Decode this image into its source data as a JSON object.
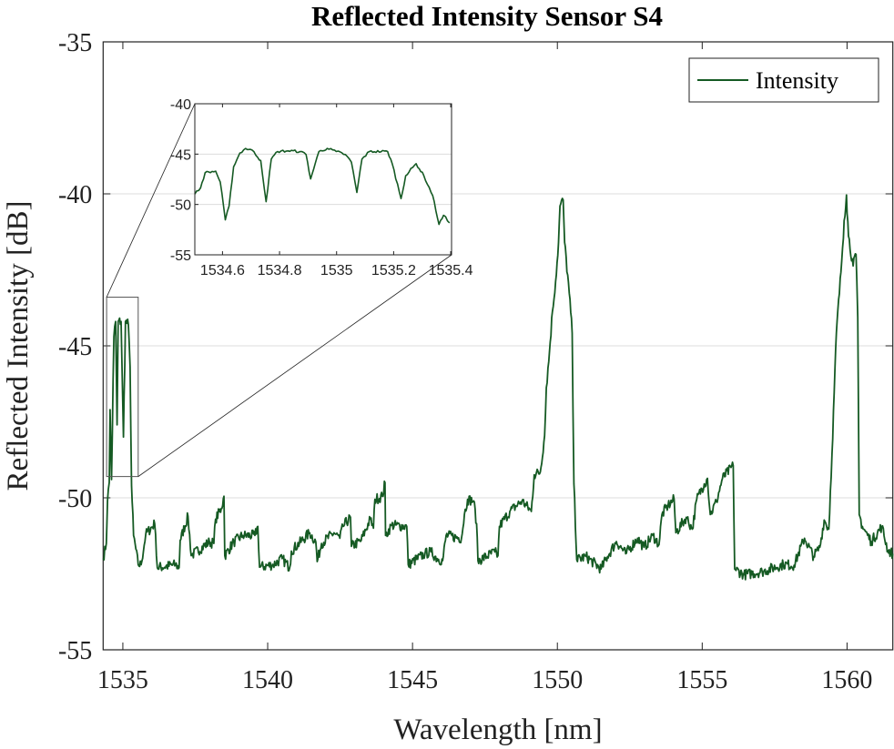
{
  "chart_data": {
    "type": "line",
    "title": "Reflected Intensity Sensor S4",
    "xlabel": "Wavelength [nm]",
    "ylabel": "Reflected Intensity [dB]",
    "xlim": [
      1534.32,
      1561.58
    ],
    "ylim": [
      -55,
      -35
    ],
    "xticks": [
      1535,
      1540,
      1545,
      1550,
      1555,
      1560
    ],
    "xtick_labels": [
      "1535",
      "1540",
      "1545",
      "1550",
      "1555",
      "1560"
    ],
    "yticks": [
      -35,
      -40,
      -45,
      -50,
      -55
    ],
    "ytick_labels": [
      "-35",
      "-40",
      "-45",
      "-50",
      "-55"
    ],
    "grid": "horizontal",
    "legend": {
      "placement": "top-right",
      "entries": [
        "Intensity"
      ]
    },
    "line_color": "#155a23",
    "series": [
      {
        "name": "Intensity",
        "x": [
          1534.32,
          1534.43,
          1534.47,
          1534.53,
          1534.56,
          1534.61,
          1534.69,
          1534.75,
          1534.8,
          1534.84,
          1534.94,
          1535.02,
          1535.09,
          1535.19,
          1535.25,
          1535.3,
          1535.37,
          1535.53,
          1535.63,
          1535.79,
          1536.1,
          1536.13,
          1536.19,
          1536.82,
          1536.94,
          1536.98,
          1537.25,
          1537.36,
          1537.99,
          1538.14,
          1538.2,
          1538.4,
          1538.49,
          1538.52,
          1538.83,
          1539.14,
          1539.56,
          1539.66,
          1539.72,
          1540.19,
          1540.5,
          1540.76,
          1540.82,
          1541.45,
          1541.66,
          1541.71,
          1541.86,
          1542.29,
          1542.49,
          1542.6,
          1542.86,
          1542.89,
          1543.23,
          1543.54,
          1543.65,
          1543.7,
          1543.96,
          1544.05,
          1544.07,
          1544.28,
          1544.8,
          1544.85,
          1545.43,
          1545.64,
          1545.85,
          1546.04,
          1546.16,
          1546.69,
          1546.79,
          1546.9,
          1547.11,
          1547.21,
          1547.26,
          1547.84,
          1547.95,
          1548.0,
          1548.36,
          1548.78,
          1549.1,
          1549.2,
          1549.41,
          1549.56,
          1549.62,
          1549.73,
          1549.83,
          1549.94,
          1550.04,
          1550.09,
          1550.2,
          1550.25,
          1550.41,
          1550.51,
          1550.57,
          1550.67,
          1550.99,
          1551.51,
          1551.73,
          1552.04,
          1552.36,
          1552.77,
          1552.99,
          1553.3,
          1553.51,
          1553.61,
          1553.82,
          1554.03,
          1554.09,
          1554.45,
          1554.66,
          1554.81,
          1555.07,
          1555.18,
          1555.28,
          1555.49,
          1555.7,
          1556.07,
          1556.12,
          1556.44,
          1557.07,
          1557.8,
          1558.17,
          1558.53,
          1558.85,
          1559.06,
          1559.21,
          1559.37,
          1559.48,
          1559.63,
          1559.79,
          1559.9,
          1559.98,
          1560.05,
          1560.21,
          1560.31,
          1560.37,
          1560.42,
          1560.53,
          1560.84,
          1561.2,
          1561.41,
          1561.58
        ],
        "y": [
          -51.99,
          -51.5,
          -50.1,
          -49.5,
          -47.1,
          -49.4,
          -44.7,
          -44.2,
          -47.6,
          -44.2,
          -44.2,
          -48.0,
          -44.2,
          -44.3,
          -45.7,
          -49.6,
          -51.24,
          -52.2,
          -52.2,
          -51.2,
          -50.85,
          -51.2,
          -52.3,
          -52.2,
          -52.3,
          -51.4,
          -50.6,
          -51.9,
          -51.45,
          -51.5,
          -50.7,
          -50.35,
          -49.95,
          -51.9,
          -51.45,
          -51.24,
          -51.24,
          -50.94,
          -52.28,
          -52.2,
          -52.0,
          -52.3,
          -51.75,
          -51.15,
          -51.45,
          -52.1,
          -51.5,
          -51.15,
          -51.33,
          -50.94,
          -50.64,
          -51.6,
          -51.4,
          -50.7,
          -51.0,
          -50.05,
          -49.95,
          -49.5,
          -51.24,
          -50.9,
          -50.94,
          -52.2,
          -51.84,
          -51.78,
          -52.0,
          -52.07,
          -51.24,
          -51.33,
          -50.55,
          -50.05,
          -50.1,
          -50.85,
          -52.07,
          -51.78,
          -51.9,
          -50.94,
          -50.45,
          -50.1,
          -50.45,
          -49.24,
          -49.15,
          -47.96,
          -46.37,
          -45.18,
          -43.87,
          -42.88,
          -41.6,
          -40.4,
          -40.2,
          -41.6,
          -43.27,
          -44.58,
          -49.54,
          -52.04,
          -51.93,
          -52.34,
          -51.93,
          -51.44,
          -51.84,
          -51.33,
          -51.63,
          -51.24,
          -51.54,
          -50.55,
          -50.25,
          -50.05,
          -51.15,
          -50.64,
          -51.03,
          -50.05,
          -49.54,
          -49.36,
          -50.55,
          -50.13,
          -49.36,
          -48.94,
          -52.34,
          -52.53,
          -52.43,
          -52.19,
          -52.22,
          -51.33,
          -51.93,
          -51.63,
          -50.73,
          -51.03,
          -48.55,
          -44.58,
          -42.58,
          -40.88,
          -40.04,
          -41.39,
          -42.37,
          -41.99,
          -44.07,
          -50.55,
          -50.94,
          -51.44,
          -50.94,
          -51.73,
          -51.84
        ]
      }
    ],
    "zoom_region": {
      "xlim": [
        1534.44,
        1535.53
      ],
      "ylim": [
        -49.3,
        -43.4
      ]
    },
    "inset": {
      "type": "line",
      "xlim": [
        1534.503,
        1535.403
      ],
      "ylim": [
        -55,
        -40
      ],
      "xticks": [
        1534.6,
        1534.8,
        1535,
        1535.2,
        1535.4
      ],
      "xtick_labels": [
        "1534.6",
        "1534.8",
        "1535",
        "1535.2",
        "1535.4"
      ],
      "yticks": [
        -40,
        -45,
        -50,
        -55
      ],
      "ytick_labels": [
        "-40",
        "-45",
        "-50",
        "-55"
      ],
      "x": [
        1534.503,
        1534.523,
        1534.539,
        1534.576,
        1534.592,
        1534.61,
        1534.623,
        1534.639,
        1534.661,
        1534.681,
        1534.703,
        1534.724,
        1534.734,
        1534.753,
        1534.771,
        1534.793,
        1534.83,
        1534.872,
        1534.893,
        1534.909,
        1534.925,
        1534.938,
        1534.967,
        1534.999,
        1535.031,
        1535.052,
        1535.071,
        1535.089,
        1535.115,
        1535.179,
        1535.195,
        1535.226,
        1535.242,
        1535.279,
        1535.306,
        1535.337,
        1535.359,
        1535.375,
        1535.396
      ],
      "y": [
        -48.96,
        -48.36,
        -46.85,
        -46.7,
        -47.76,
        -51.53,
        -50.17,
        -46.25,
        -44.89,
        -44.44,
        -44.59,
        -45.34,
        -45.64,
        -49.72,
        -45.49,
        -44.74,
        -44.68,
        -44.74,
        -45.04,
        -47.46,
        -45.95,
        -44.74,
        -44.44,
        -44.74,
        -45.04,
        -45.8,
        -48.81,
        -45.49,
        -44.74,
        -44.74,
        -45.95,
        -49.42,
        -47.15,
        -45.95,
        -47.15,
        -49.12,
        -51.98,
        -51.08,
        -51.83
      ]
    }
  }
}
